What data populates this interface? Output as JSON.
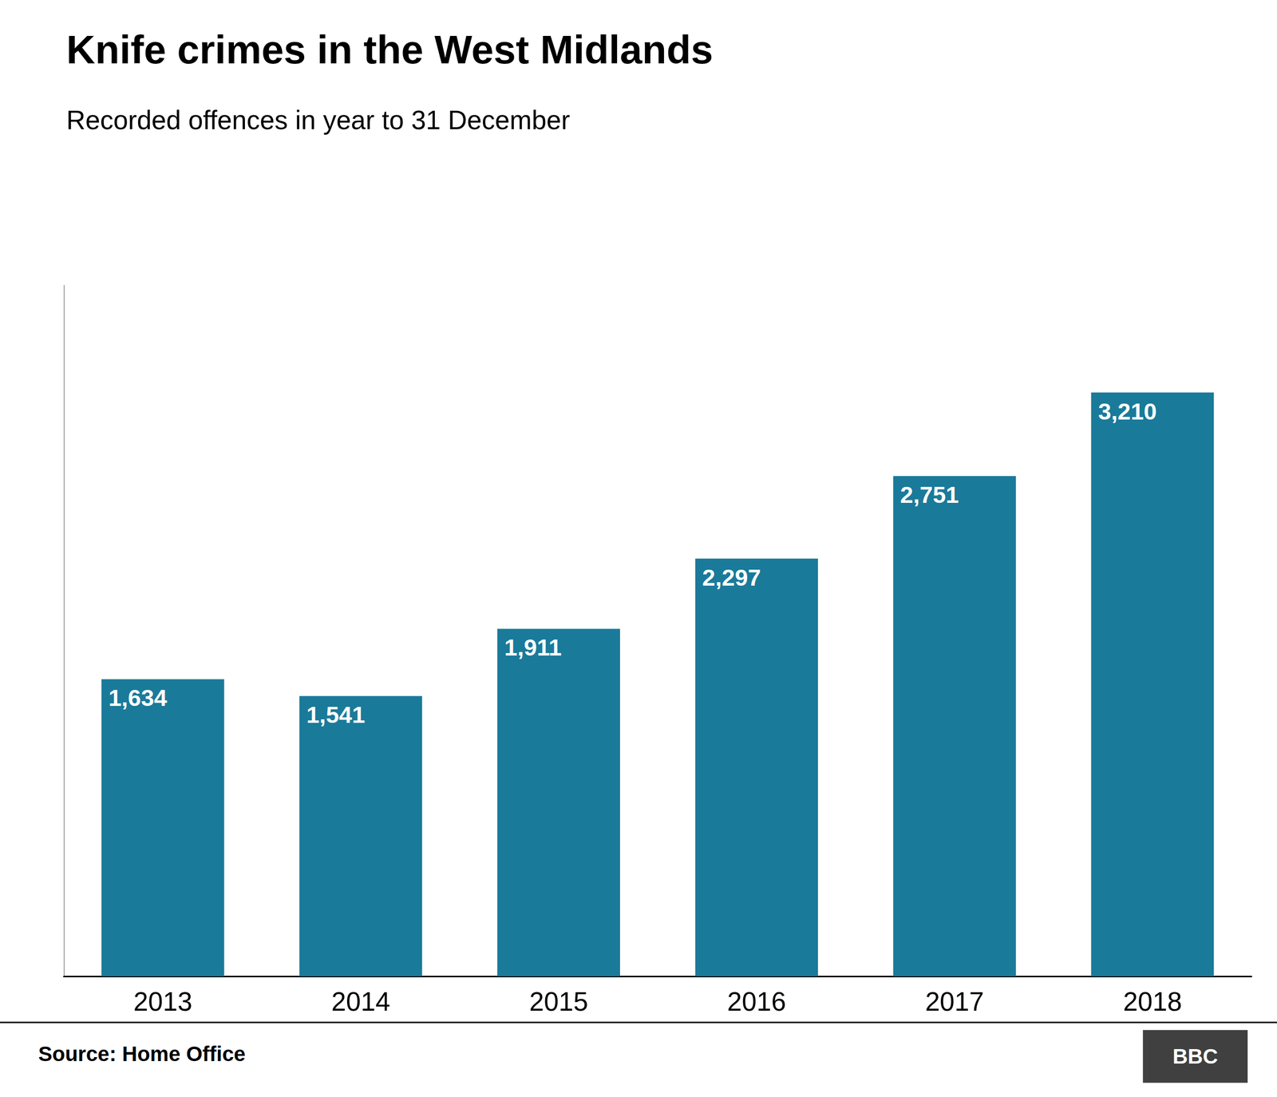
{
  "chart_data": {
    "type": "bar",
    "title": "Knife crimes in the West Midlands",
    "subtitle": "Recorded offences in year to 31 December",
    "categories": [
      "2013",
      "2014",
      "2015",
      "2016",
      "2017",
      "2018"
    ],
    "values": [
      1634,
      1541,
      1911,
      2297,
      2751,
      3210
    ],
    "value_labels": [
      "1,634",
      "1,541",
      "1,911",
      "2,297",
      "2,751",
      "3,210"
    ],
    "color": "#1a7a9a",
    "ylim": [
      0,
      3800
    ],
    "grid": false,
    "data_labels": true,
    "tick_labels": "x",
    "annotations": [
      "Source: Home Office",
      "BBC"
    ]
  }
}
